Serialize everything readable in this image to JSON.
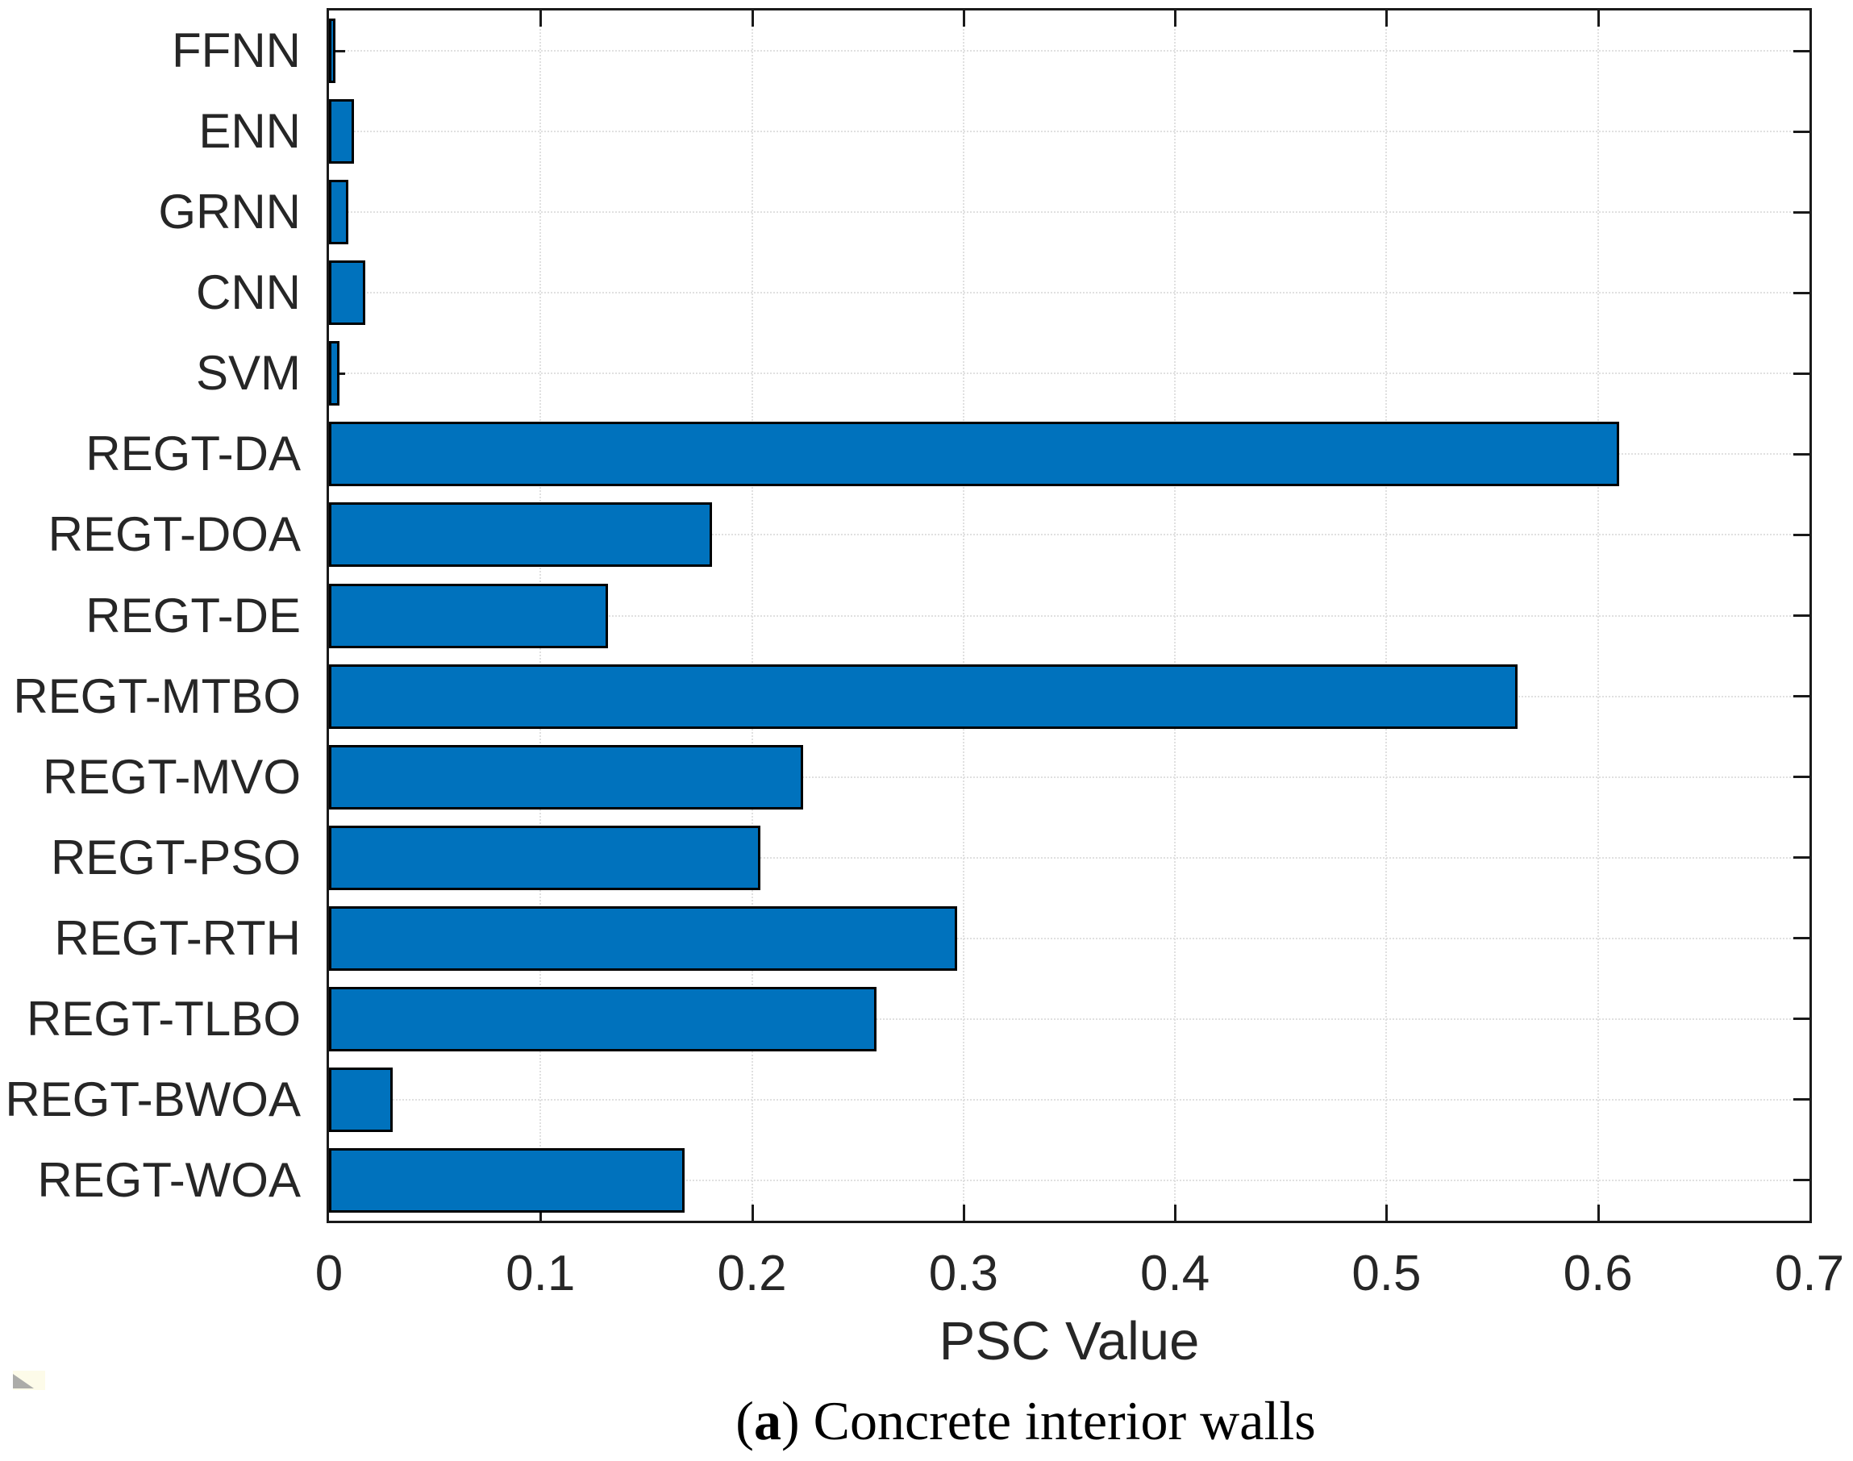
{
  "chart_data": {
    "type": "bar",
    "orientation": "horizontal",
    "title": "",
    "xlabel": "PSC Value",
    "ylabel": "",
    "xlim": [
      0,
      0.7
    ],
    "x_ticks": [
      0,
      0.1,
      0.2,
      0.3,
      0.4,
      0.5,
      0.6,
      0.7
    ],
    "x_tick_labels": [
      "0",
      "0.1",
      "0.2",
      "0.3",
      "0.4",
      "0.5",
      "0.6",
      "0.7"
    ],
    "grid": true,
    "legend": false,
    "categories": [
      "FFNN",
      "ENN",
      "GRNN",
      "CNN",
      "SVM",
      "REGT-DA",
      "REGT-DOA",
      "REGT-DE",
      "REGT-MTBO",
      "REGT-MVO",
      "REGT-PSO",
      "REGT-RTH",
      "REGT-TLBO",
      "REGT-BWOA",
      "REGT-WOA"
    ],
    "values": [
      0.003,
      0.012,
      0.009,
      0.017,
      0.005,
      0.61,
      0.181,
      0.132,
      0.562,
      0.224,
      0.204,
      0.297,
      0.259,
      0.03,
      0.168
    ],
    "bar_color": "#0072BD",
    "bar_edge_color": "#000000",
    "axis_color": "#1a1a1a",
    "grid_color": "#e0e0e0",
    "text_color": "#262626",
    "caption": "(a) Concrete interior walls"
  },
  "caption_parts": {
    "open": "(",
    "marker": "a",
    "close": ")",
    "text": " Concrete interior walls"
  }
}
